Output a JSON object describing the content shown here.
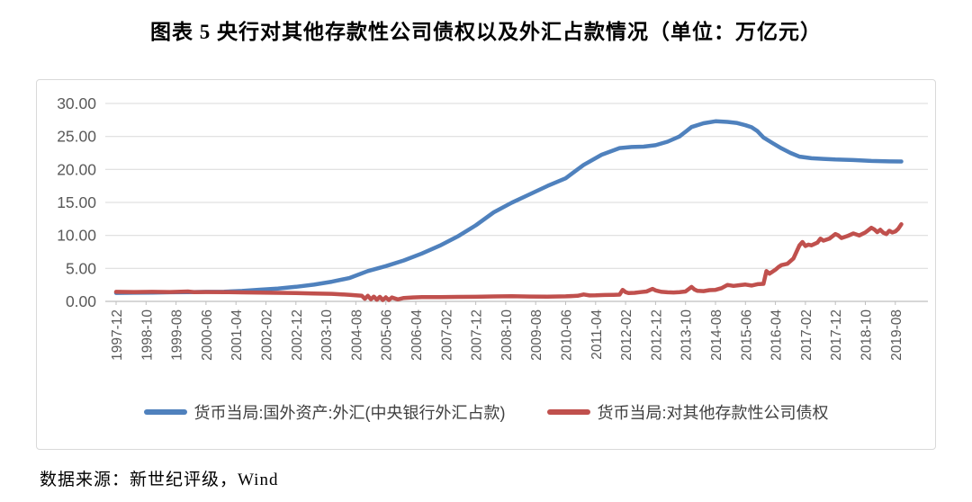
{
  "page": {
    "title": "图表 5  央行对其他存款性公司债权以及外汇占款情况（单位：万亿元）",
    "source": "数据来源：新世纪评级，Wind"
  },
  "chart_data": {
    "type": "line",
    "title": "图表 5  央行对其他存款性公司债权以及外汇占款情况（单位：万亿元）",
    "unit": "万亿元",
    "x_tick_labels": [
      "1997-12",
      "1998-10",
      "1999-08",
      "2000-06",
      "2001-04",
      "2002-02",
      "2002-12",
      "2003-10",
      "2004-08",
      "2005-06",
      "2006-04",
      "2007-02",
      "2007-12",
      "2008-10",
      "2009-08",
      "2010-06",
      "2011-04",
      "2012-02",
      "2012-12",
      "2013-10",
      "2014-08",
      "2015-06",
      "2016-04",
      "2017-02",
      "2017-12",
      "2018-10",
      "2019-08"
    ],
    "x_tick_interval_months": 10,
    "x_domain_months": [
      0,
      262
    ],
    "ylim": [
      0,
      30
    ],
    "ytick": 5,
    "y_tick_labels": [
      "30.00",
      "25.00",
      "20.00",
      "15.00",
      "10.00",
      "5.00",
      "0.00"
    ],
    "grid": "horizontal",
    "legend_position": "bottom",
    "axis_color": "#bfbfbf",
    "grid_color": "#d9d9d9",
    "series": [
      {
        "name": "货币当局:国外资产:外汇(中央银行外汇占款)",
        "color": "#4F81BD",
        "points": [
          [
            0,
            1.28
          ],
          [
            6,
            1.31
          ],
          [
            12,
            1.34
          ],
          [
            18,
            1.38
          ],
          [
            24,
            1.41
          ],
          [
            30,
            1.44
          ],
          [
            36,
            1.47
          ],
          [
            42,
            1.58
          ],
          [
            48,
            1.77
          ],
          [
            54,
            1.95
          ],
          [
            60,
            2.21
          ],
          [
            66,
            2.54
          ],
          [
            72,
            2.98
          ],
          [
            78,
            3.56
          ],
          [
            84,
            4.59
          ],
          [
            90,
            5.35
          ],
          [
            96,
            6.21
          ],
          [
            102,
            7.25
          ],
          [
            108,
            8.44
          ],
          [
            114,
            9.85
          ],
          [
            120,
            11.52
          ],
          [
            126,
            13.5
          ],
          [
            132,
            14.96
          ],
          [
            138,
            16.23
          ],
          [
            144,
            17.51
          ],
          [
            150,
            18.65
          ],
          [
            156,
            20.68
          ],
          [
            162,
            22.23
          ],
          [
            168,
            23.24
          ],
          [
            172,
            23.4
          ],
          [
            176,
            23.45
          ],
          [
            180,
            23.67
          ],
          [
            184,
            24.2
          ],
          [
            188,
            25.0
          ],
          [
            192,
            26.43
          ],
          [
            196,
            27.0
          ],
          [
            200,
            27.3
          ],
          [
            204,
            27.2
          ],
          [
            207,
            27.05
          ],
          [
            210,
            26.7
          ],
          [
            212,
            26.4
          ],
          [
            214,
            25.8
          ],
          [
            216,
            24.85
          ],
          [
            219,
            24.0
          ],
          [
            222,
            23.2
          ],
          [
            225,
            22.5
          ],
          [
            228,
            21.94
          ],
          [
            232,
            21.7
          ],
          [
            236,
            21.6
          ],
          [
            240,
            21.5
          ],
          [
            246,
            21.42
          ],
          [
            252,
            21.28
          ],
          [
            258,
            21.22
          ],
          [
            262,
            21.2
          ]
        ]
      },
      {
        "name": "货币当局:对其他存款性公司债权",
        "color": "#C0504D",
        "points": [
          [
            0,
            1.44
          ],
          [
            6,
            1.42
          ],
          [
            12,
            1.45
          ],
          [
            18,
            1.42
          ],
          [
            24,
            1.5
          ],
          [
            26,
            1.4
          ],
          [
            30,
            1.42
          ],
          [
            36,
            1.4
          ],
          [
            42,
            1.36
          ],
          [
            48,
            1.33
          ],
          [
            54,
            1.3
          ],
          [
            60,
            1.25
          ],
          [
            66,
            1.2
          ],
          [
            72,
            1.15
          ],
          [
            78,
            1.0
          ],
          [
            80,
            0.92
          ],
          [
            82,
            0.85
          ],
          [
            83,
            0.4
          ],
          [
            84,
            0.85
          ],
          [
            85,
            0.32
          ],
          [
            86,
            0.72
          ],
          [
            87,
            0.24
          ],
          [
            88,
            0.68
          ],
          [
            89,
            0.2
          ],
          [
            90,
            0.62
          ],
          [
            91,
            0.2
          ],
          [
            92,
            0.58
          ],
          [
            94,
            0.3
          ],
          [
            96,
            0.52
          ],
          [
            99,
            0.6
          ],
          [
            102,
            0.64
          ],
          [
            108,
            0.66
          ],
          [
            114,
            0.68
          ],
          [
            120,
            0.7
          ],
          [
            126,
            0.75
          ],
          [
            132,
            0.78
          ],
          [
            138,
            0.73
          ],
          [
            144,
            0.72
          ],
          [
            150,
            0.76
          ],
          [
            154,
            0.85
          ],
          [
            156,
            1.05
          ],
          [
            158,
            0.9
          ],
          [
            160,
            0.92
          ],
          [
            163,
            0.97
          ],
          [
            166,
            1.0
          ],
          [
            168,
            1.02
          ],
          [
            169,
            1.75
          ],
          [
            170,
            1.4
          ],
          [
            171,
            1.25
          ],
          [
            173,
            1.3
          ],
          [
            175,
            1.4
          ],
          [
            177,
            1.5
          ],
          [
            179,
            1.9
          ],
          [
            180,
            1.67
          ],
          [
            182,
            1.45
          ],
          [
            184,
            1.38
          ],
          [
            186,
            1.35
          ],
          [
            188,
            1.4
          ],
          [
            190,
            1.5
          ],
          [
            192,
            2.2
          ],
          [
            193,
            1.8
          ],
          [
            194,
            1.6
          ],
          [
            196,
            1.55
          ],
          [
            198,
            1.7
          ],
          [
            200,
            1.75
          ],
          [
            202,
            2.0
          ],
          [
            204,
            2.5
          ],
          [
            206,
            2.35
          ],
          [
            208,
            2.45
          ],
          [
            210,
            2.55
          ],
          [
            212,
            2.4
          ],
          [
            214,
            2.6
          ],
          [
            216,
            2.66
          ],
          [
            217,
            4.6
          ],
          [
            218,
            4.2
          ],
          [
            219,
            4.5
          ],
          [
            220,
            4.8
          ],
          [
            221,
            5.2
          ],
          [
            222,
            5.5
          ],
          [
            224,
            5.7
          ],
          [
            226,
            6.5
          ],
          [
            228,
            8.47
          ],
          [
            229,
            9.0
          ],
          [
            230,
            8.4
          ],
          [
            231,
            8.6
          ],
          [
            232,
            8.5
          ],
          [
            234,
            8.9
          ],
          [
            235,
            9.5
          ],
          [
            236,
            9.2
          ],
          [
            238,
            9.5
          ],
          [
            240,
            10.22
          ],
          [
            241,
            10.0
          ],
          [
            242,
            9.6
          ],
          [
            244,
            9.9
          ],
          [
            246,
            10.3
          ],
          [
            248,
            10.0
          ],
          [
            250,
            10.45
          ],
          [
            252,
            11.15
          ],
          [
            253,
            10.9
          ],
          [
            254,
            10.5
          ],
          [
            255,
            10.85
          ],
          [
            256,
            10.4
          ],
          [
            257,
            10.2
          ],
          [
            258,
            10.7
          ],
          [
            259,
            10.45
          ],
          [
            260,
            10.6
          ],
          [
            261,
            11.0
          ],
          [
            262,
            11.7
          ]
        ]
      }
    ]
  }
}
